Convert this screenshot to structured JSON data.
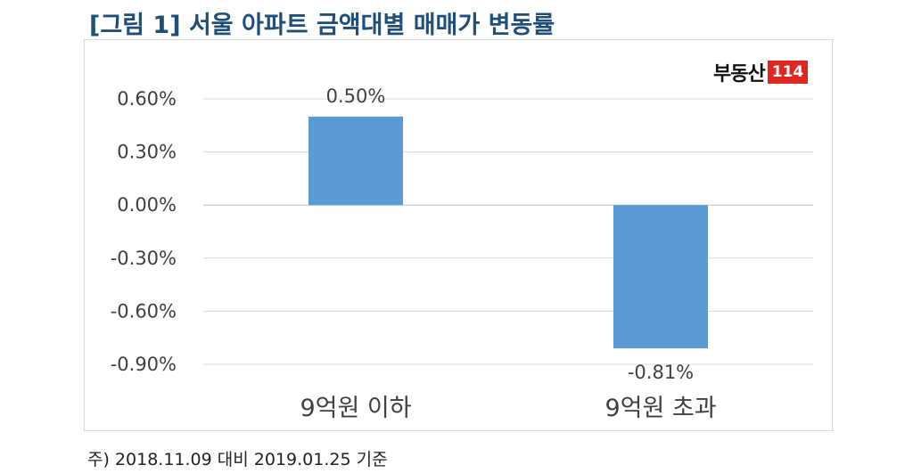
{
  "page": {
    "title": "[그림 1] 서울 아파트 금액대별 매매가 변동률",
    "footnote": "주) 2018.11.09 대비 2019.01.25 기준",
    "logo": {
      "text": "부동산",
      "number": "114"
    }
  },
  "colors": {
    "bar": "#5b9bd5",
    "title": "#1f4e79",
    "logo_badge": "#e0271f",
    "grid": "#d9d9d9"
  },
  "chart_data": {
    "type": "bar",
    "title": "",
    "xlabel": "",
    "ylabel": "",
    "categories": [
      "9억원 이하",
      "9억원 초과"
    ],
    "values": [
      0.5,
      -0.81
    ],
    "data_labels": [
      "0.50%",
      "-0.81%"
    ],
    "y_ticks": [
      0.6,
      0.3,
      0.0,
      -0.3,
      -0.6,
      -0.9
    ],
    "y_tick_labels": [
      "0.60%",
      "0.30%",
      "0.00%",
      "-0.30%",
      "-0.60%",
      "-0.90%"
    ],
    "ylim": [
      -0.9,
      0.6
    ],
    "grid": true,
    "legend": "none"
  }
}
